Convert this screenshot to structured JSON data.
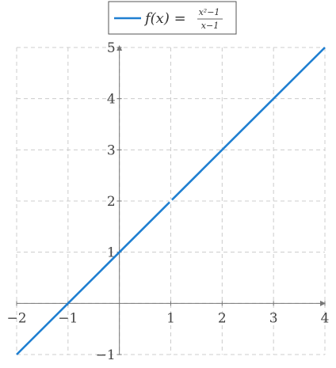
{
  "chart_data": {
    "type": "line",
    "title": "",
    "xlabel": "",
    "ylabel": "",
    "xlim": [
      -2,
      4
    ],
    "ylim": [
      -1,
      5
    ],
    "grid": true,
    "grid_style": "dashed",
    "legend_position": "top-center",
    "x_ticks": [
      "−2",
      "−1",
      "1",
      "2",
      "3",
      "4"
    ],
    "x_tick_values": [
      -2,
      -1,
      1,
      2,
      3,
      4
    ],
    "y_ticks": [
      "−1",
      "1",
      "2",
      "3",
      "4",
      "5"
    ],
    "y_tick_values": [
      -1,
      1,
      2,
      3,
      4,
      5
    ],
    "series": [
      {
        "name": "f(x) = (x²−1)/(x−1)",
        "name_parts": {
          "func": "f(x) =",
          "numerator": "x²−1",
          "denominator": "x−1"
        },
        "color": "#1f7fd1",
        "x": [
          -2,
          4
        ],
        "y": [
          -1,
          5
        ],
        "hole": {
          "x": 1,
          "y": 2
        }
      }
    ]
  },
  "colors": {
    "axis": "#777777",
    "grid": "#cccccc",
    "line": "#1f7fd1"
  }
}
